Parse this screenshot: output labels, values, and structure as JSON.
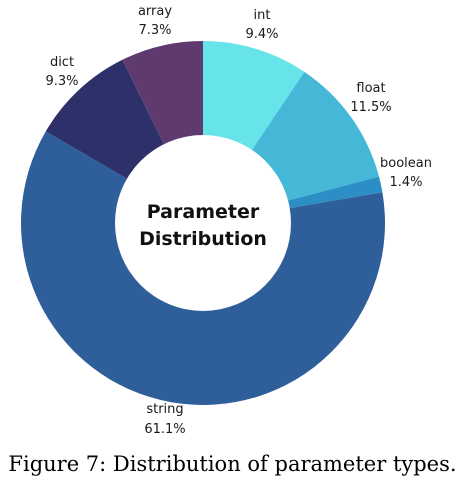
{
  "chart_data": {
    "type": "pie",
    "style": "donut",
    "center_title": [
      "Parameter",
      "Distribution"
    ],
    "slices": [
      {
        "label": "int",
        "value": 9.4,
        "value_label": "9.4%",
        "color": "#67E3EA"
      },
      {
        "label": "float",
        "value": 11.5,
        "value_label": "11.5%",
        "color": "#45B8D8"
      },
      {
        "label": "boolean",
        "value": 1.4,
        "value_label": "1.4%",
        "color": "#2B8EC4"
      },
      {
        "label": "string",
        "value": 61.1,
        "value_label": "61.1%",
        "color": "#2F5F9A"
      },
      {
        "label": "dict",
        "value": 9.3,
        "value_label": "9.3%",
        "color": "#2E3169"
      },
      {
        "label": "array",
        "value": 7.3,
        "value_label": "7.3%",
        "color": "#5E3A6E"
      }
    ]
  },
  "caption": "Figure 7: Distribution of parameter types."
}
